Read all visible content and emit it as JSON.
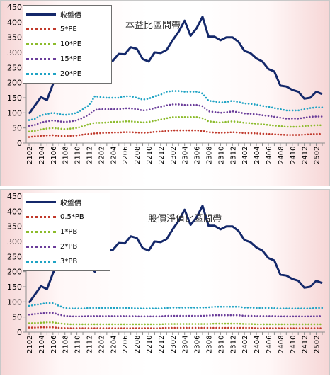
{
  "chart_data": [
    {
      "type": "line",
      "title": "本益比區間帶",
      "xlabel": "",
      "ylabel": "",
      "ylim": [
        0,
        450
      ],
      "yticks": [
        0,
        50,
        100,
        150,
        200,
        250,
        300,
        350,
        400,
        450
      ],
      "xticks": [
        "2102",
        "2104",
        "2106",
        "2108",
        "2110",
        "2112",
        "2202",
        "2204",
        "2206",
        "2208",
        "2210",
        "2212",
        "2302",
        "2304",
        "2306",
        "2308",
        "2310",
        "2312",
        "2402",
        "2404",
        "2406",
        "2408",
        "2410",
        "2412",
        "2502"
      ],
      "x": [
        "2102",
        "2103",
        "2104",
        "2105",
        "2106",
        "2107",
        "2108",
        "2109",
        "2110",
        "2111",
        "2112",
        "2201",
        "2202",
        "2203",
        "2204",
        "2205",
        "2206",
        "2207",
        "2208",
        "2209",
        "2210",
        "2211",
        "2212",
        "2301",
        "2302",
        "2303",
        "2304",
        "2305",
        "2306",
        "2307",
        "2308",
        "2309",
        "2310",
        "2311",
        "2312",
        "2401",
        "2402",
        "2403",
        "2404",
        "2405",
        "2406",
        "2407",
        "2408",
        "2409",
        "2410",
        "2411",
        "2412",
        "2501",
        "2502",
        "2503"
      ],
      "legend_position": "top-left",
      "grid": false,
      "series": [
        {
          "name": "收盤價",
          "color": "#14286a",
          "style": "solid",
          "values": [
            97,
            125,
            152,
            142,
            195,
            236,
            272,
            205,
            205,
            218,
            224,
            200,
            265,
            268,
            272,
            295,
            294,
            317,
            312,
            278,
            270,
            300,
            298,
            308,
            340,
            368,
            405,
            355,
            380,
            418,
            352,
            352,
            340,
            350,
            350,
            335,
            305,
            298,
            280,
            270,
            245,
            237,
            190,
            187,
            176,
            170,
            147,
            150,
            170,
            162
          ]
        },
        {
          "name": "5*PE",
          "color": "#c0392b",
          "style": "dotted",
          "values": [
            20,
            22,
            24,
            25,
            26,
            24,
            23,
            24,
            25,
            28,
            30,
            32,
            33,
            34,
            35,
            35,
            36,
            36,
            35,
            34,
            35,
            37,
            38,
            40,
            42,
            42,
            42,
            42,
            42,
            40,
            36,
            35,
            34,
            35,
            36,
            35,
            33,
            33,
            32,
            31,
            30,
            29,
            28,
            27,
            27,
            27,
            28,
            29,
            30,
            30
          ]
        },
        {
          "name": "10*PE",
          "color": "#8cbb2c",
          "style": "dotted",
          "values": [
            38,
            40,
            45,
            48,
            50,
            48,
            46,
            48,
            50,
            56,
            62,
            67,
            67,
            68,
            70,
            70,
            72,
            72,
            70,
            68,
            70,
            74,
            78,
            82,
            86,
            86,
            86,
            86,
            86,
            82,
            72,
            70,
            68,
            70,
            72,
            70,
            67,
            66,
            64,
            62,
            60,
            58,
            56,
            54,
            54,
            54,
            56,
            58,
            59,
            59
          ]
        },
        {
          "name": "15*PE",
          "color": "#6a3d9a",
          "style": "dotted",
          "values": [
            57,
            60,
            68,
            72,
            75,
            72,
            70,
            72,
            75,
            84,
            94,
            110,
            112,
            112,
            112,
            112,
            115,
            115,
            112,
            108,
            110,
            116,
            120,
            125,
            128,
            128,
            126,
            126,
            126,
            122,
            105,
            103,
            100,
            102,
            105,
            102,
            98,
            97,
            95,
            92,
            90,
            87,
            84,
            81,
            81,
            81,
            84,
            87,
            88,
            88
          ]
        },
        {
          "name": "20*PE",
          "color": "#1fa3c4",
          "style": "dotted",
          "values": [
            76,
            80,
            92,
            96,
            100,
            96,
            93,
            96,
            100,
            112,
            125,
            155,
            152,
            150,
            150,
            150,
            155,
            155,
            150,
            144,
            147,
            155,
            160,
            170,
            172,
            172,
            170,
            170,
            170,
            164,
            140,
            138,
            134,
            136,
            140,
            136,
            131,
            130,
            127,
            123,
            120,
            116,
            112,
            108,
            108,
            108,
            112,
            116,
            118,
            118
          ]
        }
      ]
    },
    {
      "type": "line",
      "title": "股價淨值比區間帶",
      "xlabel": "",
      "ylabel": "",
      "ylim": [
        0,
        450
      ],
      "yticks": [
        0,
        50,
        100,
        150,
        200,
        250,
        300,
        350,
        400,
        450
      ],
      "xticks": [
        "2102",
        "2104",
        "2106",
        "2108",
        "2110",
        "2112",
        "2202",
        "2204",
        "2206",
        "2208",
        "2210",
        "2212",
        "2302",
        "2304",
        "2306",
        "2308",
        "2310",
        "2312",
        "2402",
        "2404",
        "2406",
        "2408",
        "2410",
        "2412",
        "2502"
      ],
      "x": [
        "2102",
        "2103",
        "2104",
        "2105",
        "2106",
        "2107",
        "2108",
        "2109",
        "2110",
        "2111",
        "2112",
        "2201",
        "2202",
        "2203",
        "2204",
        "2205",
        "2206",
        "2207",
        "2208",
        "2209",
        "2210",
        "2211",
        "2212",
        "2301",
        "2302",
        "2303",
        "2304",
        "2305",
        "2306",
        "2307",
        "2308",
        "2309",
        "2310",
        "2311",
        "2312",
        "2401",
        "2402",
        "2403",
        "2404",
        "2405",
        "2406",
        "2407",
        "2408",
        "2409",
        "2410",
        "2411",
        "2412",
        "2501",
        "2502",
        "2503"
      ],
      "legend_position": "top-left",
      "grid": false,
      "series": [
        {
          "name": "收盤價",
          "color": "#14286a",
          "style": "solid",
          "values": [
            97,
            125,
            152,
            142,
            195,
            236,
            272,
            205,
            205,
            218,
            224,
            200,
            265,
            268,
            272,
            295,
            294,
            317,
            312,
            278,
            270,
            300,
            298,
            308,
            340,
            368,
            405,
            355,
            380,
            418,
            352,
            352,
            340,
            350,
            350,
            335,
            305,
            298,
            280,
            270,
            245,
            237,
            190,
            187,
            176,
            170,
            147,
            150,
            170,
            162
          ]
        },
        {
          "name": "0.5*PB",
          "color": "#c0392b",
          "style": "dotted",
          "values": [
            15,
            15,
            16,
            16,
            16,
            14,
            13,
            13,
            13,
            13,
            13,
            13,
            13,
            13,
            13,
            13,
            13,
            13,
            13,
            13,
            13,
            13,
            13,
            14,
            14,
            14,
            14,
            14,
            14,
            14,
            14,
            14,
            14,
            14,
            14,
            14,
            14,
            14,
            13,
            13,
            13,
            13,
            13,
            13,
            13,
            13,
            13,
            13,
            13,
            13
          ]
        },
        {
          "name": "1*PB",
          "color": "#8cbb2c",
          "style": "dotted",
          "values": [
            29,
            30,
            31,
            32,
            32,
            29,
            27,
            26,
            26,
            26,
            26,
            26,
            26,
            26,
            26,
            26,
            26,
            26,
            26,
            26,
            26,
            26,
            26,
            27,
            27,
            27,
            27,
            27,
            27,
            27,
            27,
            28,
            28,
            28,
            28,
            28,
            27,
            27,
            26,
            26,
            26,
            26,
            26,
            26,
            26,
            26,
            26,
            26,
            26,
            26
          ]
        },
        {
          "name": "2*PB",
          "color": "#6a3d9a",
          "style": "dotted",
          "values": [
            58,
            60,
            62,
            64,
            64,
            58,
            54,
            52,
            52,
            52,
            53,
            53,
            53,
            53,
            53,
            53,
            53,
            53,
            52,
            52,
            52,
            52,
            52,
            54,
            54,
            54,
            54,
            54,
            54,
            54,
            55,
            56,
            56,
            56,
            56,
            56,
            54,
            54,
            53,
            53,
            53,
            53,
            52,
            52,
            52,
            52,
            52,
            52,
            53,
            53
          ]
        },
        {
          "name": "3*PB",
          "color": "#1fa3c4",
          "style": "dotted",
          "values": [
            87,
            90,
            93,
            96,
            96,
            87,
            80,
            78,
            78,
            78,
            80,
            80,
            80,
            80,
            80,
            80,
            80,
            80,
            78,
            78,
            78,
            78,
            78,
            80,
            81,
            81,
            81,
            81,
            81,
            81,
            82,
            84,
            84,
            84,
            84,
            84,
            81,
            81,
            80,
            80,
            80,
            79,
            78,
            78,
            78,
            78,
            78,
            78,
            80,
            80
          ]
        }
      ]
    }
  ]
}
